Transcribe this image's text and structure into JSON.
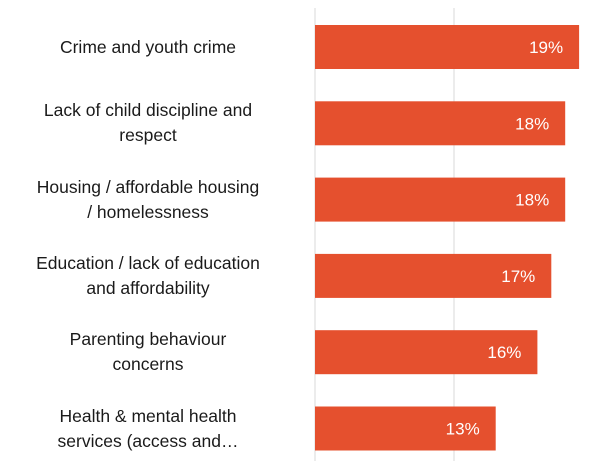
{
  "chart_data": {
    "type": "bar",
    "orientation": "horizontal",
    "categories": [
      "Crime and youth crime",
      "Lack of child discipline and respect",
      "Housing / affordable housing / homelessness",
      "Education / lack of education and affordability",
      "Parenting behaviour concerns",
      "Health & mental health services (access and…"
    ],
    "category_lines": [
      [
        "Crime and youth crime"
      ],
      [
        "Lack of child discipline and",
        "respect"
      ],
      [
        "Housing / affordable housing",
        "/ homelessness"
      ],
      [
        "Education / lack of education",
        "and affordability"
      ],
      [
        "Parenting behaviour",
        "concerns"
      ],
      [
        "Health & mental health",
        "services (access and…"
      ]
    ],
    "values": [
      19,
      18,
      18,
      17,
      16,
      13
    ],
    "value_labels": [
      "19%",
      "18%",
      "18%",
      "17%",
      "16%",
      "13%"
    ],
    "xlim": [
      0,
      20
    ],
    "grid": true,
    "bar_color": "#e5502e",
    "gridline_color": "#d9d9d9"
  }
}
